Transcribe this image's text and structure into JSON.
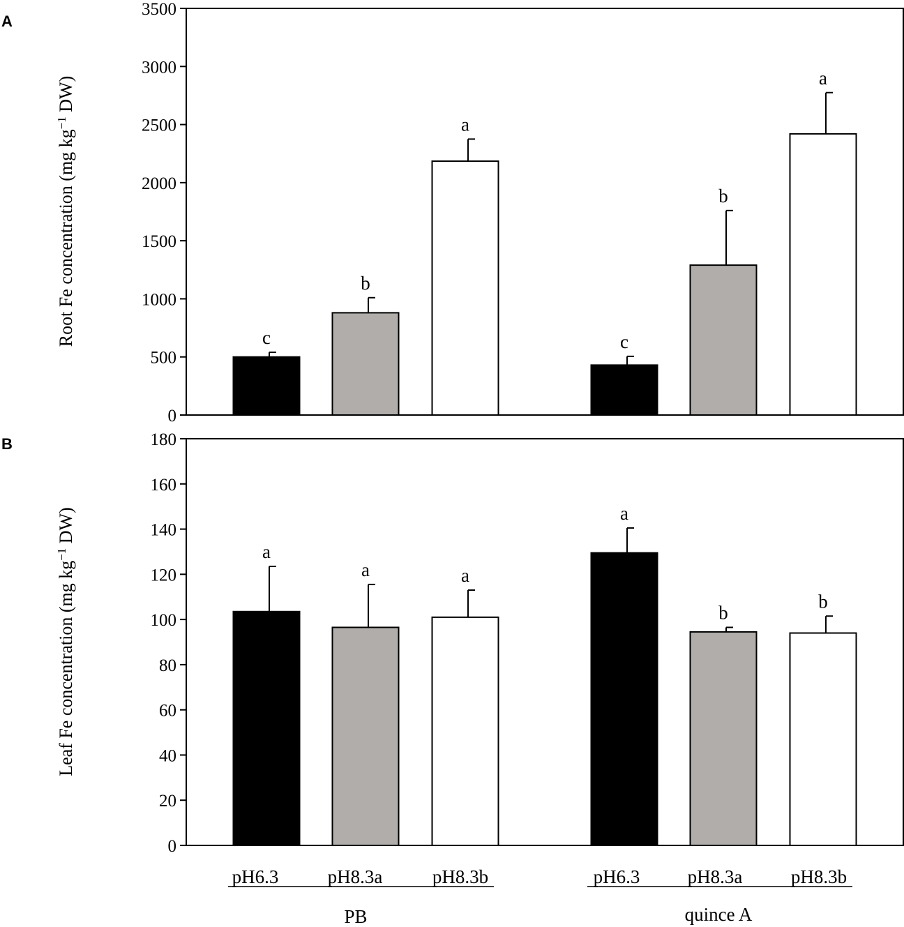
{
  "colors": {
    "pH6.3": "#000000",
    "pH8.3a": "#b0adab",
    "pH8.3b": "#ffffff",
    "axis": "#000000"
  },
  "chart_data": [
    {
      "type": "bar",
      "panel": "A",
      "ylabel": "Root Fe concentration (mg kg-1 DW)",
      "ylabel_parts": {
        "main": "Root Fe concentration (mg kg",
        "sup": "−1",
        "tail": " DW)"
      },
      "ylim": [
        0,
        3500
      ],
      "yticks": [
        "0",
        "500",
        "1000",
        "1500",
        "2000",
        "2500",
        "3000",
        "3500"
      ],
      "groups": [
        "PB",
        "quince A"
      ],
      "categories": [
        "pH6.3",
        "pH8.3a",
        "pH8.3b"
      ],
      "series": [
        {
          "group": "PB",
          "values": [
            500,
            880,
            2185
          ],
          "errors": [
            40,
            130,
            190
          ],
          "letters": [
            "c",
            "b",
            "a"
          ]
        },
        {
          "group": "quince A",
          "values": [
            430,
            1290,
            2420
          ],
          "errors": [
            75,
            470,
            355
          ],
          "letters": [
            "c",
            "b",
            "a"
          ]
        }
      ]
    },
    {
      "type": "bar",
      "panel": "B",
      "ylabel": "Leaf Fe concentration (mg kg-1 DW)",
      "ylabel_parts": {
        "main": "Leaf Fe concentration (mg kg",
        "sup": "−1",
        "tail": " DW)"
      },
      "ylim": [
        0,
        180
      ],
      "yticks": [
        "0",
        "20",
        "40",
        "60",
        "80",
        "100",
        "120",
        "140",
        "160",
        "180"
      ],
      "groups": [
        "PB",
        "quince A"
      ],
      "categories": [
        "pH6.3",
        "pH8.3a",
        "pH8.3b"
      ],
      "series": [
        {
          "group": "PB",
          "values": [
            103.5,
            96.5,
            101
          ],
          "errors": [
            20,
            19,
            12
          ],
          "letters": [
            "a",
            "a",
            "a"
          ]
        },
        {
          "group": "quince A",
          "values": [
            129.5,
            94.5,
            94
          ],
          "errors": [
            11,
            2,
            7.5
          ],
          "letters": [
            "a",
            "b",
            "b"
          ]
        }
      ]
    }
  ],
  "x_axis": {
    "groups": [
      {
        "label": "PB",
        "categories": [
          "pH6.3",
          "pH8.3a",
          "pH8.3b"
        ]
      },
      {
        "label": "quince A",
        "categories": [
          "pH6.3",
          "pH8.3a",
          "pH8.3b"
        ]
      }
    ]
  }
}
